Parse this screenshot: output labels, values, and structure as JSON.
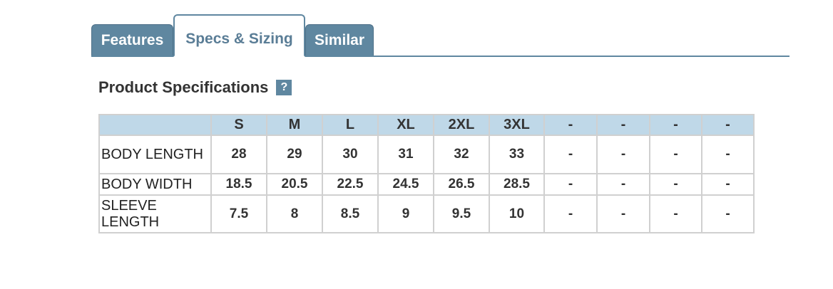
{
  "tabs": [
    "Features",
    "Specs & Sizing",
    "Similar"
  ],
  "active_tab": 1,
  "section": {
    "title": "Product Specifications",
    "help": "?"
  },
  "table": {
    "header": [
      "S",
      "M",
      "L",
      "XL",
      "2XL",
      "3XL",
      "-",
      "-",
      "-",
      "-"
    ],
    "rows": [
      {
        "label": "BODY LENGTH",
        "cells": [
          28,
          29,
          30,
          31,
          32,
          33,
          "-",
          "-",
          "-",
          "-"
        ]
      },
      {
        "label": "BODY WIDTH",
        "cells": [
          18.5,
          20.5,
          22.5,
          24.5,
          26.5,
          28.5,
          "-",
          "-",
          "-",
          "-"
        ]
      },
      {
        "label": "SLEEVE LENGTH",
        "cells": [
          7.5,
          8,
          8.5,
          9,
          9.5,
          10,
          "-",
          "-",
          "-",
          "-"
        ]
      }
    ]
  }
}
